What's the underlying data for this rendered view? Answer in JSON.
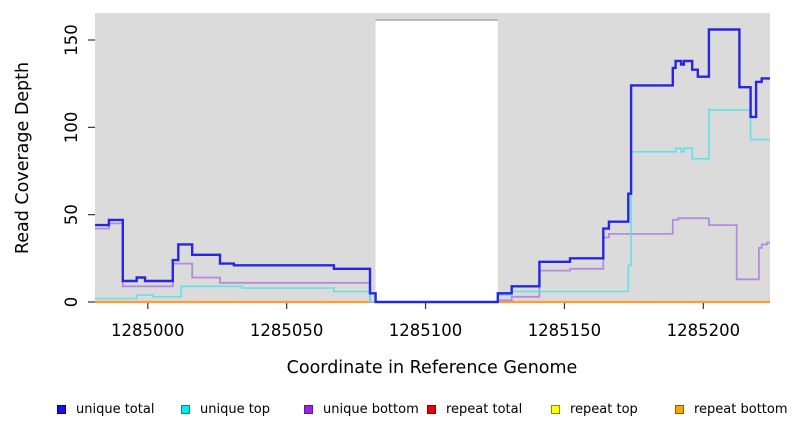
{
  "figure": {
    "xlabel": "Coordinate in Reference Genome",
    "ylabel": "Read Coverage Depth"
  },
  "legend": {
    "items": [
      {
        "label": "unique total",
        "fill": "#1414DC",
        "border": "#00008B"
      },
      {
        "label": "unique top",
        "fill": "#00EDED",
        "border": "#008B8B"
      },
      {
        "label": "unique bottom",
        "fill": "#A020E0",
        "border": "#551A8B"
      },
      {
        "label": "repeat total",
        "fill": "#EE0000",
        "border": "#8B0000"
      },
      {
        "label": "repeat top",
        "fill": "#FFFF00",
        "border": "#8B8B00"
      },
      {
        "label": "repeat bottom",
        "fill": "#FFA500",
        "border": "#8B5A00"
      }
    ]
  },
  "chart_data": {
    "type": "line",
    "subtype": "step",
    "title": "",
    "xlabel": "Coordinate in Reference Genome",
    "ylabel": "Read Coverage Depth",
    "xlim": [
      1284981,
      1285224
    ],
    "ylim": [
      0,
      165
    ],
    "grid": false,
    "plot_bg": "#DBDBDB",
    "uncovered_region": {
      "x0": 1285082,
      "x1": 1285126,
      "fill": "#FFFFFF",
      "edge": "#A8A8A8"
    },
    "xticks": [
      {
        "v": 1285000,
        "label": "1285000"
      },
      {
        "v": 1285050,
        "label": "1285050"
      },
      {
        "v": 1285100,
        "label": "1285100"
      },
      {
        "v": 1285150,
        "label": "1285150"
      },
      {
        "v": 1285200,
        "label": "1285200"
      }
    ],
    "yticks": [
      {
        "v": 0,
        "label": "0"
      },
      {
        "v": 50,
        "label": "50"
      },
      {
        "v": 100,
        "label": "100"
      },
      {
        "v": 150,
        "label": "150"
      }
    ],
    "series": [
      {
        "name": "repeat total",
        "color": "#DD0000",
        "width": 1.5,
        "segments": [
          [
            [
              1284981,
              0
            ],
            [
              1285082,
              0
            ]
          ],
          [
            [
              1285126,
              0
            ],
            [
              1285224,
              0
            ]
          ]
        ]
      },
      {
        "name": "repeat top",
        "color": "#EEEE00",
        "width": 1.5,
        "segments": [
          [
            [
              1284981,
              0
            ],
            [
              1285082,
              0
            ]
          ],
          [
            [
              1285126,
              0
            ],
            [
              1285224,
              0
            ]
          ]
        ]
      },
      {
        "name": "repeat bottom",
        "color": "#FF9D33",
        "width": 2.2,
        "segments": [
          [
            [
              1284981,
              0
            ],
            [
              1285082,
              0
            ]
          ],
          [
            [
              1285126,
              0
            ],
            [
              1285224,
              0
            ]
          ]
        ]
      },
      {
        "name": "unique bottom",
        "color": "#B48CDB",
        "width": 1.8,
        "segments": [
          [
            [
              1284981,
              42
            ],
            [
              1284986,
              45
            ],
            [
              1284991,
              9
            ],
            [
              1285009,
              22
            ],
            [
              1285016,
              14
            ],
            [
              1285026,
              11
            ],
            [
              1285080,
              0
            ],
            [
              1285126,
              1
            ],
            [
              1285131,
              3
            ],
            [
              1285141,
              18
            ],
            [
              1285152,
              19
            ],
            [
              1285164,
              37
            ],
            [
              1285166,
              39
            ],
            [
              1285189,
              47
            ],
            [
              1285191,
              48
            ],
            [
              1285202,
              44
            ],
            [
              1285212,
              13
            ],
            [
              1285220,
              31
            ],
            [
              1285221,
              33
            ],
            [
              1285223,
              34
            ],
            [
              1285224,
              34
            ]
          ]
        ]
      },
      {
        "name": "unique top",
        "color": "#5FE2E9",
        "width": 1.6,
        "segments": [
          [
            [
              1284981,
              2
            ],
            [
              1284996,
              4
            ],
            [
              1285002,
              3
            ],
            [
              1285012,
              9
            ],
            [
              1285034,
              8
            ],
            [
              1285067,
              6
            ],
            [
              1285080,
              0
            ],
            [
              1285126,
              4
            ],
            [
              1285131,
              6
            ],
            [
              1285173,
              21
            ],
            [
              1285174,
              86
            ],
            [
              1285190,
              88
            ],
            [
              1285192,
              86
            ],
            [
              1285193,
              88
            ],
            [
              1285196,
              82
            ],
            [
              1285202,
              110
            ],
            [
              1285217,
              93
            ],
            [
              1285224,
              93
            ]
          ]
        ]
      },
      {
        "name": "unique total",
        "color": "#2727E3",
        "width": 2.4,
        "segments": [
          [
            [
              1284981,
              44
            ],
            [
              1284986,
              47
            ],
            [
              1284991,
              12
            ],
            [
              1284996,
              14
            ],
            [
              1284999,
              12
            ],
            [
              1285009,
              24
            ],
            [
              1285011,
              33
            ],
            [
              1285016,
              27
            ],
            [
              1285026,
              22
            ],
            [
              1285031,
              21
            ],
            [
              1285067,
              19
            ],
            [
              1285080,
              5
            ],
            [
              1285082,
              0
            ],
            [
              1285126,
              5
            ],
            [
              1285131,
              9
            ],
            [
              1285141,
              23
            ],
            [
              1285152,
              25
            ],
            [
              1285164,
              42
            ],
            [
              1285166,
              46
            ],
            [
              1285173,
              62
            ],
            [
              1285174,
              124
            ],
            [
              1285189,
              134
            ],
            [
              1285190,
              138
            ],
            [
              1285192,
              136
            ],
            [
              1285193,
              138
            ],
            [
              1285196,
              133
            ],
            [
              1285198,
              129
            ],
            [
              1285202,
              156
            ],
            [
              1285213,
              123
            ],
            [
              1285217,
              106
            ],
            [
              1285219,
              126
            ],
            [
              1285221,
              128
            ],
            [
              1285224,
              128
            ]
          ]
        ]
      }
    ]
  }
}
